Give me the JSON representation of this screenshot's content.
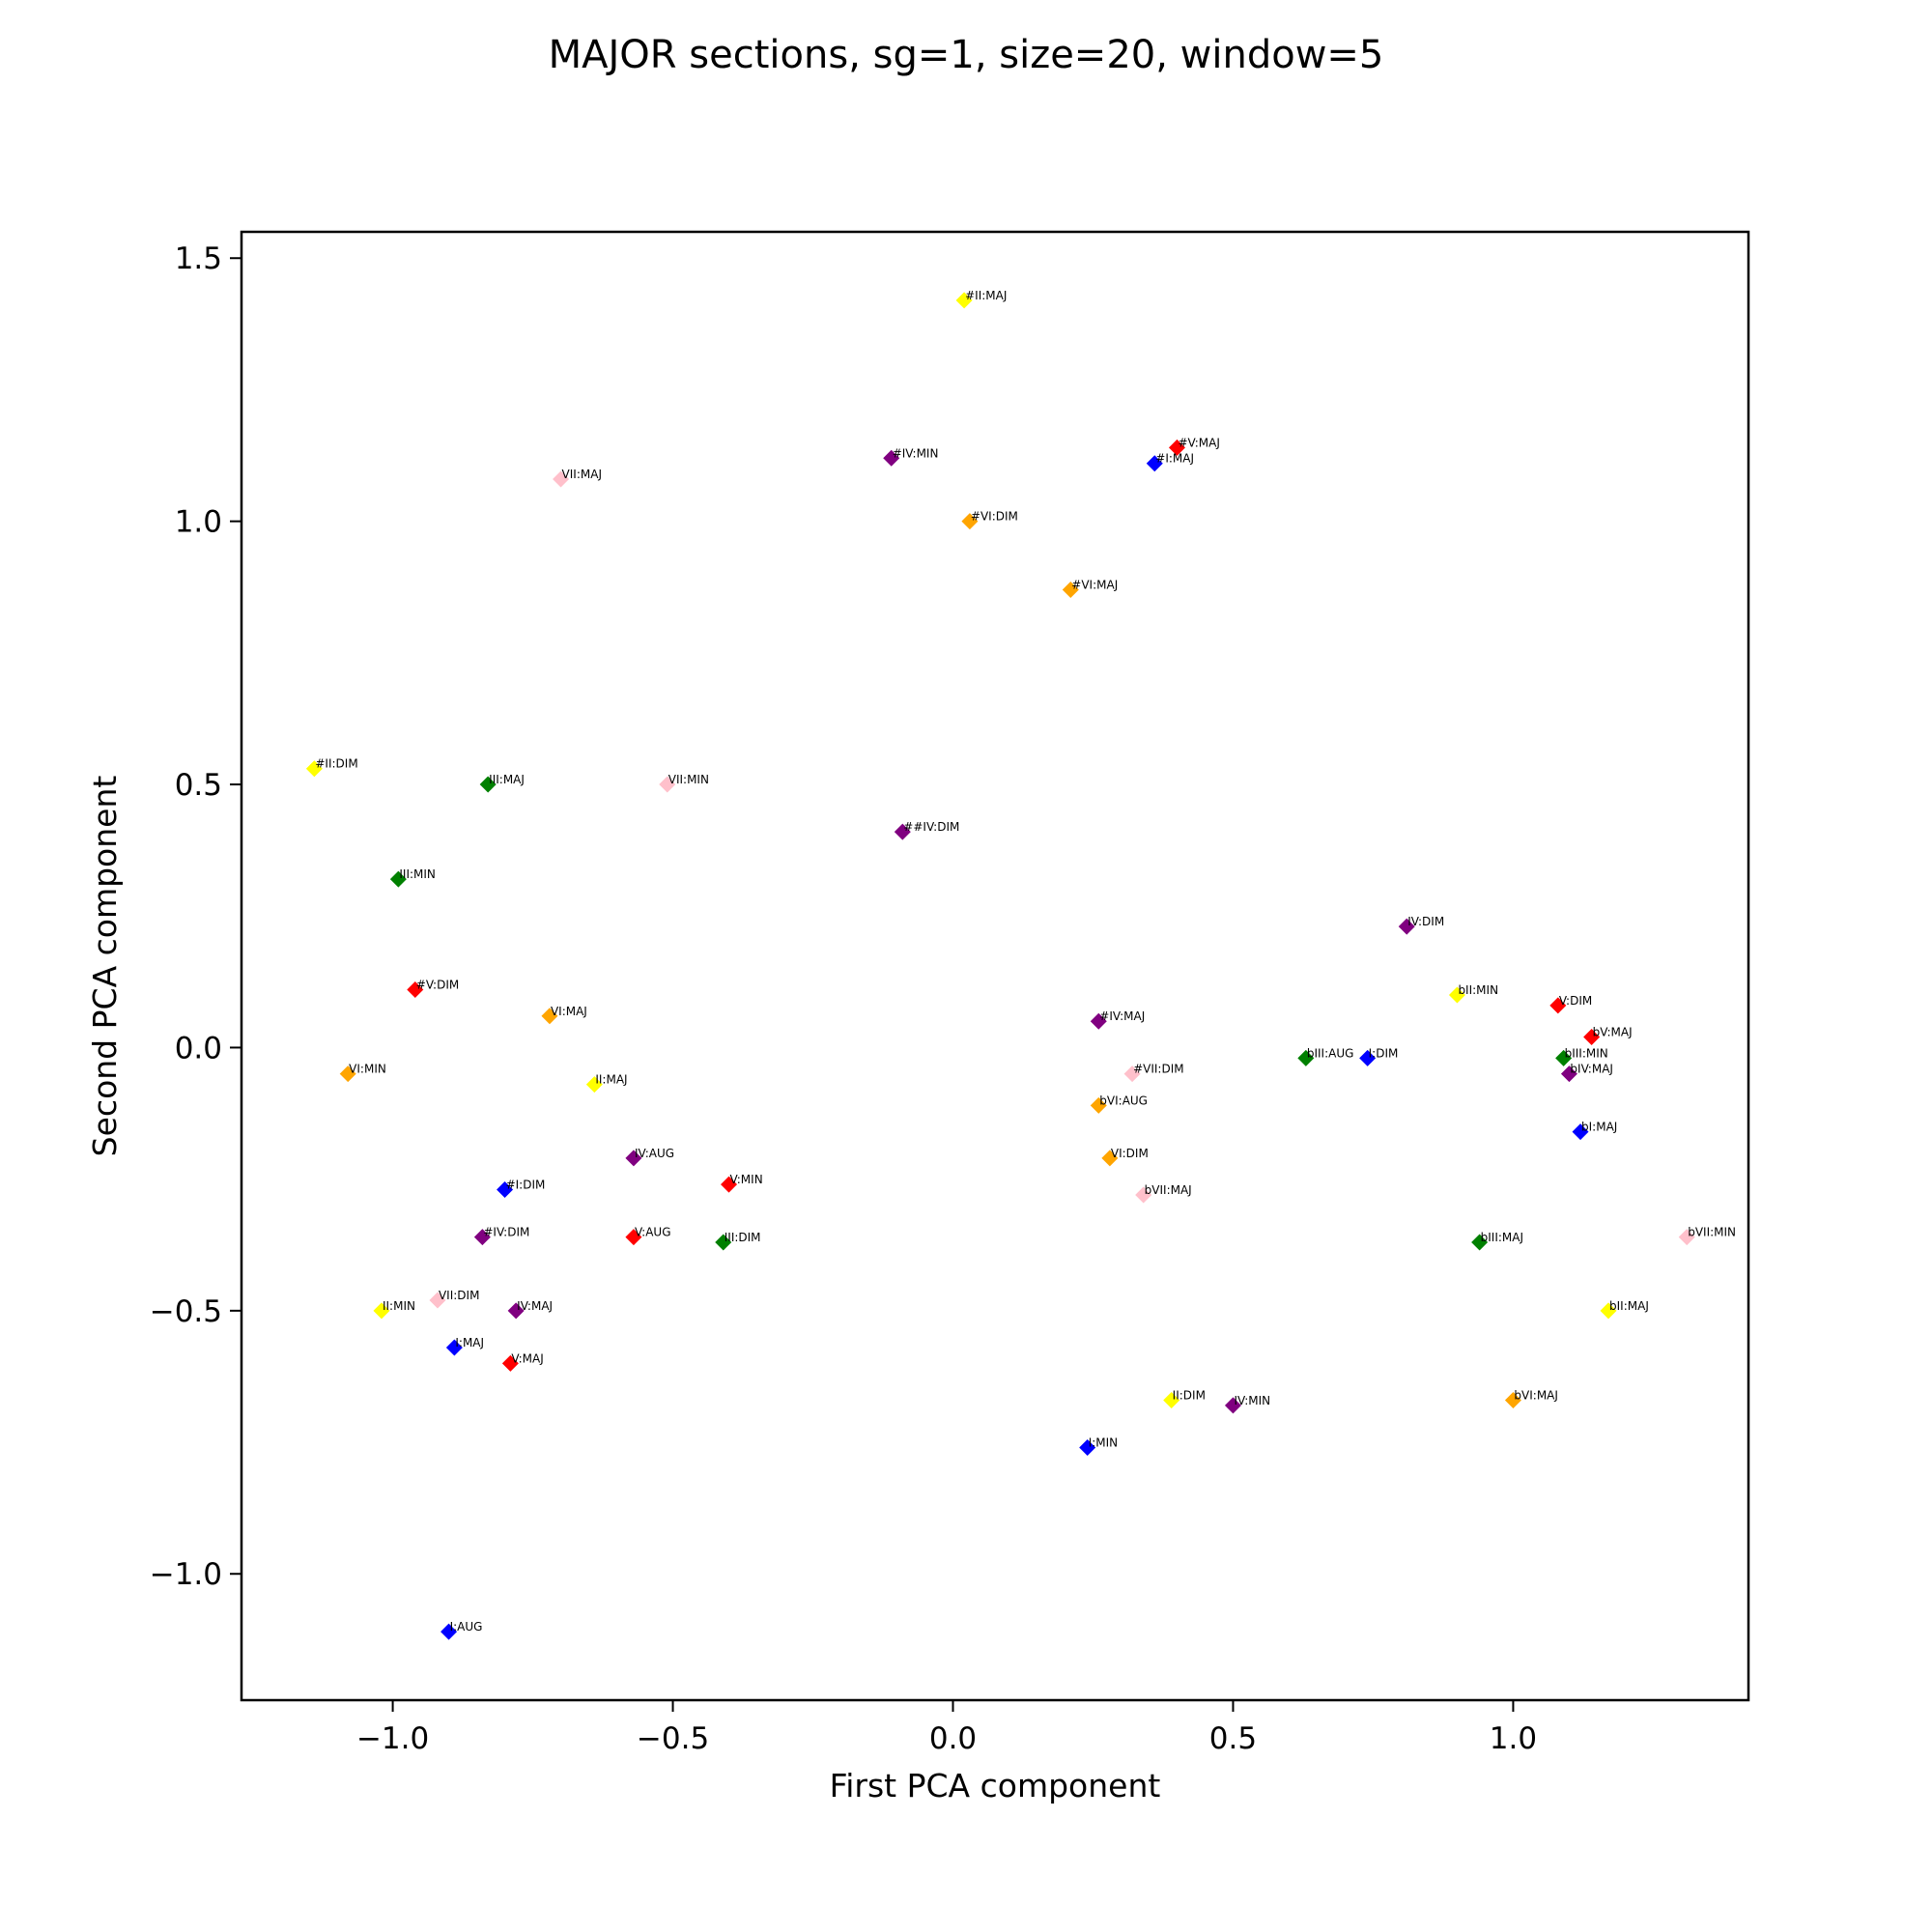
{
  "chart_data": {
    "type": "scatter",
    "title": "MAJOR sections, sg=1, size=20, window=5",
    "xlabel": "First PCA component",
    "ylabel": "Second PCA component",
    "xlim": [
      -1.27,
      1.42
    ],
    "ylim": [
      -1.24,
      1.55
    ],
    "xticks": [
      -1.0,
      -0.5,
      0.0,
      0.5,
      1.0
    ],
    "xtick_labels": [
      "−1.0",
      "−0.5",
      "0.0",
      "0.5",
      "1.0"
    ],
    "yticks": [
      -1.0,
      -0.5,
      0.0,
      0.5,
      1.0,
      1.5
    ],
    "ytick_labels": [
      "−1.0",
      "−0.5",
      "0.0",
      "0.5",
      "1.0",
      "1.5"
    ],
    "grid": false,
    "marker": "diamond",
    "points": [
      {
        "label": "#II:MAJ",
        "x": 0.02,
        "y": 1.42,
        "color": "#ffff00"
      },
      {
        "label": "#V:MAJ",
        "x": 0.4,
        "y": 1.14,
        "color": "#ff0000"
      },
      {
        "label": "#I:MAJ",
        "x": 0.36,
        "y": 1.11,
        "color": "#0000ff"
      },
      {
        "label": "#IV:MIN",
        "x": -0.11,
        "y": 1.12,
        "color": "#800080"
      },
      {
        "label": "VII:MAJ",
        "x": -0.7,
        "y": 1.08,
        "color": "#ffc0cb"
      },
      {
        "label": "#VI:DIM",
        "x": 0.03,
        "y": 1.0,
        "color": "#ffa500"
      },
      {
        "label": "#VI:MAJ",
        "x": 0.21,
        "y": 0.87,
        "color": "#ffa500"
      },
      {
        "label": "#II:DIM",
        "x": -1.14,
        "y": 0.53,
        "color": "#ffff00"
      },
      {
        "label": "III:MAJ",
        "x": -0.83,
        "y": 0.5,
        "color": "#008000"
      },
      {
        "label": "VII:MIN",
        "x": -0.51,
        "y": 0.5,
        "color": "#ffc0cb"
      },
      {
        "label": "##IV:DIM",
        "x": -0.09,
        "y": 0.41,
        "color": "#800080"
      },
      {
        "label": "III:MIN",
        "x": -0.99,
        "y": 0.32,
        "color": "#008000"
      },
      {
        "label": "IV:DIM",
        "x": 0.81,
        "y": 0.23,
        "color": "#800080"
      },
      {
        "label": "#V:DIM",
        "x": -0.96,
        "y": 0.11,
        "color": "#ff0000"
      },
      {
        "label": "bII:MIN",
        "x": 0.9,
        "y": 0.1,
        "color": "#ffff00"
      },
      {
        "label": "V:DIM",
        "x": 1.08,
        "y": 0.08,
        "color": "#ff0000"
      },
      {
        "label": "VI:MAJ",
        "x": -0.72,
        "y": 0.06,
        "color": "#ffa500"
      },
      {
        "label": "#IV:MAJ",
        "x": 0.26,
        "y": 0.05,
        "color": "#800080"
      },
      {
        "label": "bV:MAJ",
        "x": 1.14,
        "y": 0.02,
        "color": "#ff0000"
      },
      {
        "label": "bIII:AUG",
        "x": 0.63,
        "y": -0.02,
        "color": "#008000"
      },
      {
        "label": "I:DIM",
        "x": 0.74,
        "y": -0.02,
        "color": "#0000ff"
      },
      {
        "label": "bIII:MIN",
        "x": 1.09,
        "y": -0.02,
        "color": "#008000"
      },
      {
        "label": "VI:MIN",
        "x": -1.08,
        "y": -0.05,
        "color": "#ffa500"
      },
      {
        "label": "#VII:DIM",
        "x": 0.32,
        "y": -0.05,
        "color": "#ffc0cb"
      },
      {
        "label": "bIV:MAJ",
        "x": 1.1,
        "y": -0.05,
        "color": "#800080"
      },
      {
        "label": "II:MAJ",
        "x": -0.64,
        "y": -0.07,
        "color": "#ffff00"
      },
      {
        "label": "bVI:AUG",
        "x": 0.26,
        "y": -0.11,
        "color": "#ffa500"
      },
      {
        "label": "bI:MAJ",
        "x": 1.12,
        "y": -0.16,
        "color": "#0000ff"
      },
      {
        "label": "IV:AUG",
        "x": -0.57,
        "y": -0.21,
        "color": "#800080"
      },
      {
        "label": "VI:DIM",
        "x": 0.28,
        "y": -0.21,
        "color": "#ffa500"
      },
      {
        "label": "V:MIN",
        "x": -0.4,
        "y": -0.26,
        "color": "#ff0000"
      },
      {
        "label": "#I:DIM",
        "x": -0.8,
        "y": -0.27,
        "color": "#0000ff"
      },
      {
        "label": "bVII:MAJ",
        "x": 0.34,
        "y": -0.28,
        "color": "#ffc0cb"
      },
      {
        "label": "#IV:DIM",
        "x": -0.84,
        "y": -0.36,
        "color": "#800080"
      },
      {
        "label": "V:AUG",
        "x": -0.57,
        "y": -0.36,
        "color": "#ff0000"
      },
      {
        "label": "III:DIM",
        "x": -0.41,
        "y": -0.37,
        "color": "#008000"
      },
      {
        "label": "bVII:MIN",
        "x": 1.31,
        "y": -0.36,
        "color": "#ffc0cb"
      },
      {
        "label": "bIII:MAJ",
        "x": 0.94,
        "y": -0.37,
        "color": "#008000"
      },
      {
        "label": "VII:DIM",
        "x": -0.92,
        "y": -0.48,
        "color": "#ffc0cb"
      },
      {
        "label": "II:MIN",
        "x": -1.02,
        "y": -0.5,
        "color": "#ffff00"
      },
      {
        "label": "IV:MAJ",
        "x": -0.78,
        "y": -0.5,
        "color": "#800080"
      },
      {
        "label": "bII:MAJ",
        "x": 1.17,
        "y": -0.5,
        "color": "#ffff00"
      },
      {
        "label": "I:MAJ",
        "x": -0.89,
        "y": -0.57,
        "color": "#0000ff"
      },
      {
        "label": "V:MAJ",
        "x": -0.79,
        "y": -0.6,
        "color": "#ff0000"
      },
      {
        "label": "II:DIM",
        "x": 0.39,
        "y": -0.67,
        "color": "#ffff00"
      },
      {
        "label": "IV:MIN",
        "x": 0.5,
        "y": -0.68,
        "color": "#800080"
      },
      {
        "label": "bVI:MAJ",
        "x": 1.0,
        "y": -0.67,
        "color": "#ffa500"
      },
      {
        "label": "I:MIN",
        "x": 0.24,
        "y": -0.76,
        "color": "#0000ff"
      },
      {
        "label": "I:AUG",
        "x": -0.9,
        "y": -1.11,
        "color": "#0000ff"
      }
    ]
  }
}
